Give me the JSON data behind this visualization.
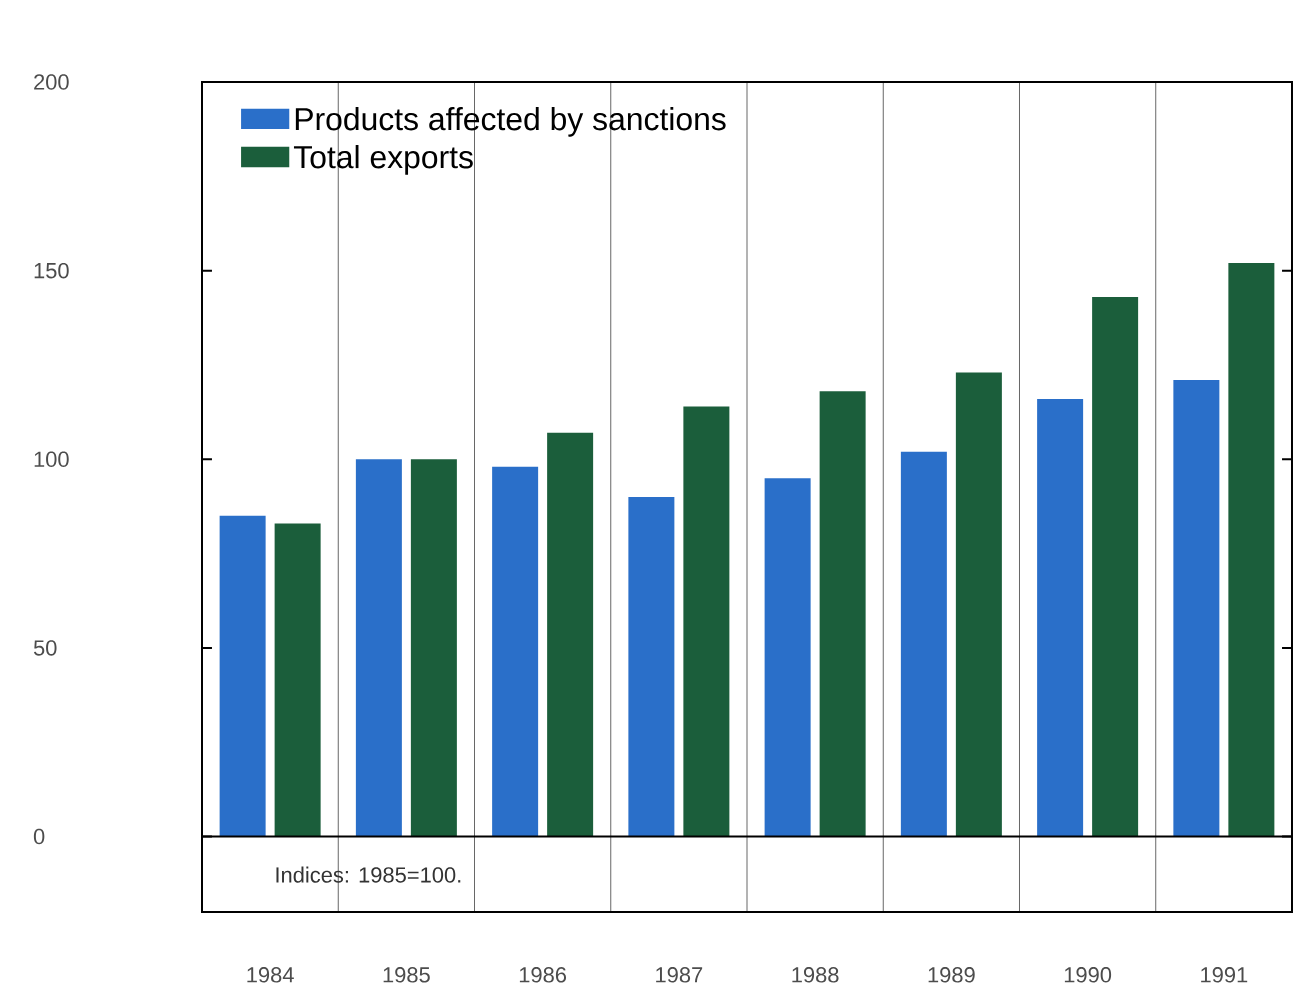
{
  "chart_data": {
    "type": "bar",
    "categories": [
      "1984",
      "1985",
      "1986",
      "1987",
      "1988",
      "1989",
      "1990",
      "1991"
    ],
    "series": [
      {
        "name": "Products affected by sanctions",
        "color": "#2a6fc9",
        "values": [
          85,
          100,
          98,
          90,
          95,
          102,
          116,
          121
        ]
      },
      {
        "name": "Total exports",
        "color": "#1b5e3b",
        "values": [
          83,
          100,
          107,
          114,
          118,
          123,
          143,
          152
        ]
      }
    ],
    "ylim": [
      -20,
      200
    ],
    "yticks": [
      0,
      50,
      100,
      150,
      200
    ],
    "grid": "x",
    "legend": "top left",
    "annotations": [
      "Indices: 1985=100."
    ]
  }
}
